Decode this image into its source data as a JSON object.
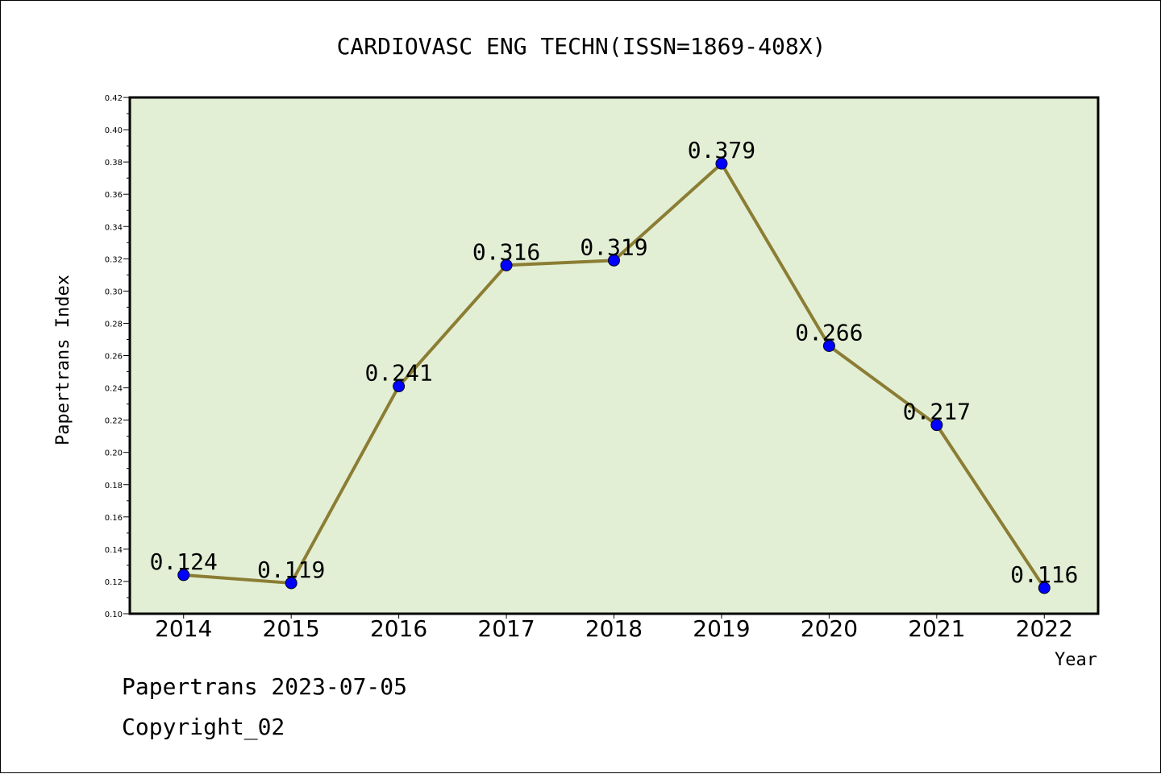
{
  "chart_data": {
    "type": "line",
    "title": "CARDIOVASC ENG TECHN(ISSN=1869-408X)",
    "xlabel": "Year",
    "ylabel": "Papertrans Index",
    "categories": [
      "2014",
      "2015",
      "2016",
      "2017",
      "2018",
      "2019",
      "2020",
      "2021",
      "2022"
    ],
    "series": [
      {
        "values": [
          0.124,
          0.119,
          0.241,
          0.316,
          0.319,
          0.379,
          0.266,
          0.217,
          0.116
        ],
        "labels": [
          "0.124",
          "0.119",
          "0.241",
          "0.316",
          "0.319",
          "0.379",
          "0.266",
          "0.217",
          "0.116"
        ],
        "line_color": "#8b7d33",
        "marker_color": "#0000ff"
      }
    ],
    "ylim": [
      0.1,
      0.42
    ],
    "yticks": [
      "0.10",
      "0.12",
      "0.14",
      "0.16",
      "0.18",
      "0.20",
      "0.22",
      "0.24",
      "0.26",
      "0.28",
      "0.30",
      "0.32",
      "0.34",
      "0.36",
      "0.38",
      "0.40",
      "0.42"
    ],
    "grid": false,
    "legend": false,
    "plot_background": "#e2efd5"
  },
  "footer": {
    "line1": "Papertrans 2023-07-05",
    "line2": "Copyright_02"
  }
}
